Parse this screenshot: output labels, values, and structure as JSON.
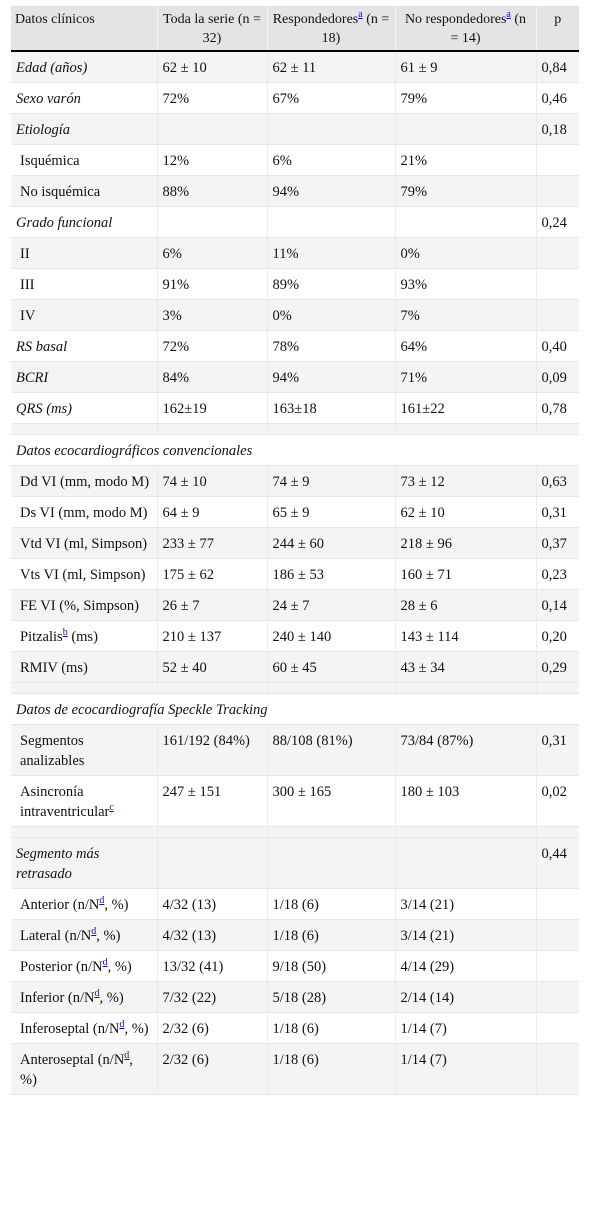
{
  "header": {
    "col1": "Datos clínicos",
    "col2": "Toda la serie (n = 32)",
    "col3_pre": "Respondedores",
    "col3_note": "a",
    "col3_post": " (n = 18)",
    "col4_pre": "No respondedores",
    "col4_note": "a",
    "col4_post": " (n = 14)",
    "col5": "p"
  },
  "rows": [
    {
      "t": "Edad (años)",
      "v1": "62 ± 10",
      "v2": "62 ± 11",
      "v3": "61 ± 9",
      "p": "0,84"
    },
    {
      "t": "Sexo varón",
      "v1": "72%",
      "v2": "67%",
      "v3": "79%",
      "p": "0,46"
    },
    {
      "t": "Etiología",
      "v1": "",
      "v2": "",
      "v3": "",
      "p": "0,18"
    },
    {
      "t": "Isquémica",
      "v1": "12%",
      "v2": "6%",
      "v3": "21%",
      "p": ""
    },
    {
      "t": "No isquémica",
      "v1": "88%",
      "v2": "94%",
      "v3": "79%",
      "p": ""
    },
    {
      "t": "Grado funcional",
      "v1": "",
      "v2": "",
      "v3": "",
      "p": "0,24"
    },
    {
      "t": "II",
      "v1": "6%",
      "v2": "11%",
      "v3": "0%",
      "p": ""
    },
    {
      "t": "III",
      "v1": "91%",
      "v2": "89%",
      "v3": "93%",
      "p": ""
    },
    {
      "t": "IV",
      "v1": "3%",
      "v2": "0%",
      "v3": "7%",
      "p": ""
    },
    {
      "t": "RS basal",
      "v1": "72%",
      "v2": "78%",
      "v3": "64%",
      "p": "0,40"
    },
    {
      "t": "BCRI",
      "v1": "84%",
      "v2": "94%",
      "v3": "71%",
      "p": "0,09"
    },
    {
      "t": "QRS (ms)",
      "v1": "162±19",
      "v2": "163±18",
      "v3": "161±22",
      "p": "0,78"
    },
    {
      "t": "Datos ecocardiográficos convencionales",
      "v1": "",
      "v2": "",
      "v3": "",
      "p": ""
    },
    {
      "t": "Dd VI (mm, modo M)",
      "v1": "74 ± 10",
      "v2": "74 ± 9",
      "v3": "73 ± 12",
      "p": "0,63"
    },
    {
      "t": "Ds VI (mm, modo M)",
      "v1": "64 ± 9",
      "v2": "65 ± 9",
      "v3": "62 ± 10",
      "p": "0,31"
    },
    {
      "t": "Vtd VI (ml, Simpson)",
      "v1": "233 ± 77",
      "v2": "244 ± 60",
      "v3": "218 ± 96",
      "p": "0,37"
    },
    {
      "t": "Vts VI (ml, Simpson)",
      "v1": "175 ± 62",
      "v2": "186 ± 53",
      "v3": "160 ± 71",
      "p": "0,23"
    },
    {
      "t": "FE VI (%, Simpson)",
      "v1": "26 ± 7",
      "v2": "24 ± 7",
      "v3": "28 ± 6",
      "p": "0,14"
    },
    {
      "t": "Pitzalis",
      "note": "b",
      "t2": " (ms)",
      "v1": "210 ± 137",
      "v2": "240 ± 140",
      "v3": "143 ± 114",
      "p": "0,20"
    },
    {
      "t": "RMIV (ms)",
      "v1": "52 ± 40",
      "v2": "60 ± 45",
      "v3": "43 ± 34",
      "p": "0,29"
    },
    {
      "t": "Datos de ecocardiografía Speckle Tracking",
      "v1": "",
      "v2": "",
      "v3": "",
      "p": ""
    },
    {
      "t": "Segmentos analizables",
      "v1": "161/192 (84%)",
      "v2": "88/108 (81%)",
      "v3": "73/84 (87%)",
      "p": "0,31"
    },
    {
      "t": "Asincronía intraventricular",
      "note": "c",
      "t2": "",
      "v1": "247 ± 151",
      "v2": "300 ± 165",
      "v3": "180 ± 103",
      "p": "0,02"
    },
    {
      "t": "Segmento más retrasado",
      "v1": "",
      "v2": "",
      "v3": "",
      "p": "0,44"
    },
    {
      "t": "Anterior (n/N",
      "note": "d",
      "t2": ", %)",
      "v1": "4/32 (13)",
      "v2": "1/18 (6)",
      "v3": "3/14 (21)",
      "p": ""
    },
    {
      "t": "Lateral (n/N",
      "note": "d",
      "t2": ", %)",
      "v1": "4/32 (13)",
      "v2": "1/18 (6)",
      "v3": "3/14 (21)",
      "p": ""
    },
    {
      "t": "Posterior (n/N",
      "note": "d",
      "t2": ", %)",
      "v1": "13/32 (41)",
      "v2": "9/18 (50)",
      "v3": "4/14 (29)",
      "p": ""
    },
    {
      "t": "Inferior (n/N",
      "note": "d",
      "t2": ", %)",
      "v1": "7/32 (22)",
      "v2": "5/18 (28)",
      "v3": "2/14 (14)",
      "p": ""
    },
    {
      "t": "Inferoseptal (n/N",
      "note": "d",
      "t2": ", %)",
      "v1": "2/32 (6)",
      "v2": "1/18 (6)",
      "v3": "1/14 (7)",
      "p": ""
    },
    {
      "t": "Anteroseptal (n/N",
      "note": "d",
      "t2": ", %)",
      "v1": "2/32 (6)",
      "v2": "1/18 (6)",
      "v3": "1/14 (7)",
      "p": ""
    }
  ]
}
